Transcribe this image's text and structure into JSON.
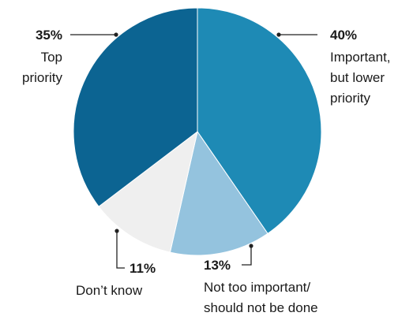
{
  "chart_data": {
    "type": "pie",
    "start_angle_deg": 0,
    "direction": "clockwise",
    "slices": [
      {
        "value": 40,
        "percent_label": "40%",
        "label_lines": [
          "Important,",
          "but lower",
          "priority"
        ],
        "color": "#1e8ab5"
      },
      {
        "value": 13,
        "percent_label": "13%",
        "label_lines": [
          "Not too important/",
          "should not be done"
        ],
        "color": "#94c3de"
      },
      {
        "value": 11,
        "percent_label": "11%",
        "label_lines": [
          "Don’t know"
        ],
        "color": "#efefef"
      },
      {
        "value": 35,
        "percent_label": "35%",
        "label_lines": [
          "Top",
          "priority"
        ],
        "color": "#0c6492"
      }
    ]
  }
}
